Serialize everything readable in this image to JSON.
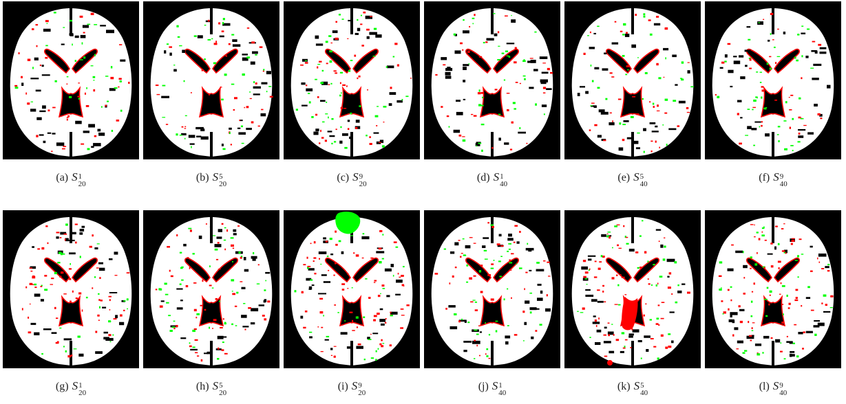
{
  "colors": {
    "background": "#000000",
    "tissue": "#ffffff",
    "false_positive": "#00ff00",
    "false_negative": "#ff0000"
  },
  "panels": [
    {
      "label": "(a)",
      "var": "S",
      "sup": "1",
      "sub": "20",
      "noise": 0.35,
      "big_green": false,
      "big_red": false
    },
    {
      "label": "(b)",
      "var": "S",
      "sup": "5",
      "sub": "20",
      "noise": 0.35,
      "big_green": false,
      "big_red": false
    },
    {
      "label": "(c)",
      "var": "S",
      "sup": "9",
      "sub": "20",
      "noise": 0.55,
      "big_green": false,
      "big_red": false
    },
    {
      "label": "(d)",
      "var": "S",
      "sup": "1",
      "sub": "40",
      "noise": 0.35,
      "big_green": false,
      "big_red": false
    },
    {
      "label": "(e)",
      "var": "S",
      "sup": "5",
      "sub": "40",
      "noise": 0.35,
      "big_green": false,
      "big_red": false
    },
    {
      "label": "(f)",
      "var": "S",
      "sup": "9",
      "sub": "40",
      "noise": 0.4,
      "big_green": false,
      "big_red": false
    },
    {
      "label": "(g)",
      "var": "S",
      "sup": "1",
      "sub": "20",
      "noise": 0.55,
      "big_green": false,
      "big_red": false
    },
    {
      "label": "(h)",
      "var": "S",
      "sup": "5",
      "sub": "20",
      "noise": 0.65,
      "big_green": false,
      "big_red": false
    },
    {
      "label": "(i)",
      "var": "S",
      "sup": "9",
      "sub": "20",
      "noise": 0.75,
      "big_green": true,
      "big_red": false
    },
    {
      "label": "(j)",
      "var": "S",
      "sup": "1",
      "sub": "40",
      "noise": 0.55,
      "big_green": false,
      "big_red": false
    },
    {
      "label": "(k)",
      "var": "S",
      "sup": "5",
      "sub": "40",
      "noise": 0.7,
      "big_green": false,
      "big_red": true
    },
    {
      "label": "(l)",
      "var": "S",
      "sup": "9",
      "sub": "40",
      "noise": 0.8,
      "big_green": false,
      "big_red": false
    }
  ]
}
